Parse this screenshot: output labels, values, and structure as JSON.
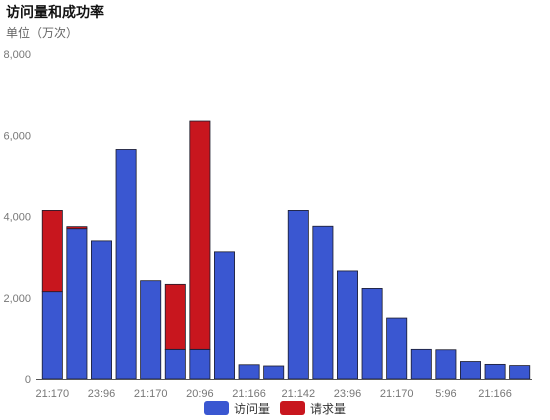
{
  "chart_data": {
    "type": "bar",
    "title": "访问量和成功率",
    "unit_label": "单位（万次）",
    "ylim": [
      0,
      8000
    ],
    "yticks": [
      "0",
      "2,000",
      "4,000",
      "6,000",
      "8,000"
    ],
    "grid": false,
    "legend_position": "bottom-center",
    "categories": [
      "21:170",
      "",
      "23:96",
      "",
      "21:170",
      "",
      "20:96",
      "",
      "21:166",
      "",
      "21:142",
      "",
      "23:96",
      "",
      "21:170",
      "",
      "5:96",
      "",
      "21:166",
      ""
    ],
    "series": [
      {
        "name": "访问量",
        "color": "#3a57d1",
        "values": [
          2150,
          3700,
          3400,
          5650,
          2420,
          730,
          730,
          3130,
          350,
          320,
          4150,
          3760,
          2660,
          2230,
          1500,
          730,
          720,
          430,
          360,
          330
        ]
      },
      {
        "name": "请求量",
        "color": "#c8161e",
        "values": [
          2000,
          50,
          0,
          0,
          0,
          1600,
          5620,
          0,
          0,
          0,
          0,
          0,
          0,
          0,
          0,
          0,
          0,
          0,
          0,
          0
        ]
      }
    ]
  }
}
